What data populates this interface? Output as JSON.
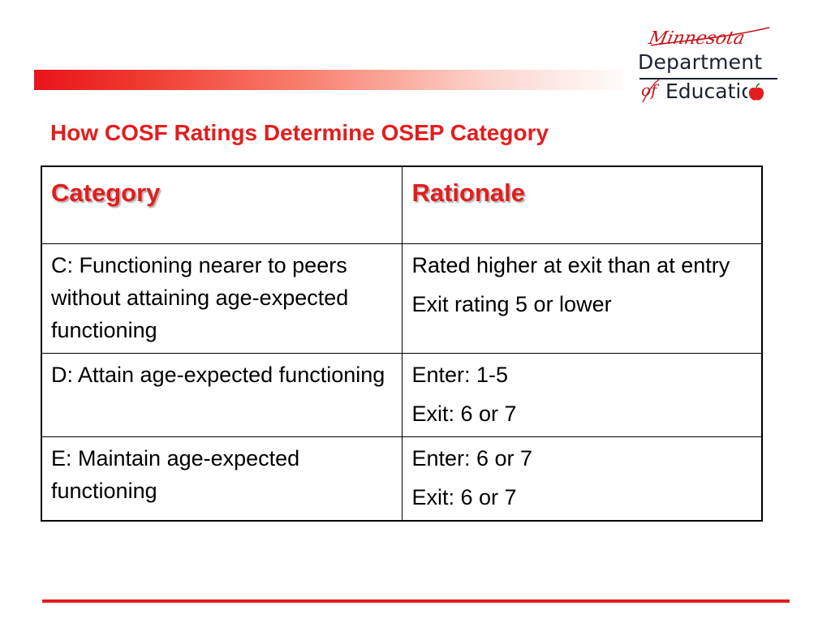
{
  "logo": {
    "minnesota": "Minnesota",
    "department": "Department",
    "of": "of",
    "education": "Education"
  },
  "title": "How COSF Ratings Determine OSEP Category",
  "table": {
    "headers": [
      "Category",
      "Rationale"
    ],
    "rows": [
      {
        "category": "C: Functioning nearer to peers without attaining age-expected functioning",
        "rationale": [
          "Rated higher at exit than at entry",
          "Exit rating 5 or lower"
        ]
      },
      {
        "category": "D:  Attain age-expected functioning",
        "rationale": [
          "Enter: 1-5",
          "Exit:  6 or 7"
        ]
      },
      {
        "category": "E: Maintain age-expected functioning",
        "rationale": [
          "Enter:  6 or 7",
          "Exit: 6 or 7"
        ]
      }
    ]
  },
  "colors": {
    "accent_red": "#e31d1d",
    "logo_navy": "#1b2230"
  },
  "icons": {
    "logo_apple": "apple-icon"
  }
}
